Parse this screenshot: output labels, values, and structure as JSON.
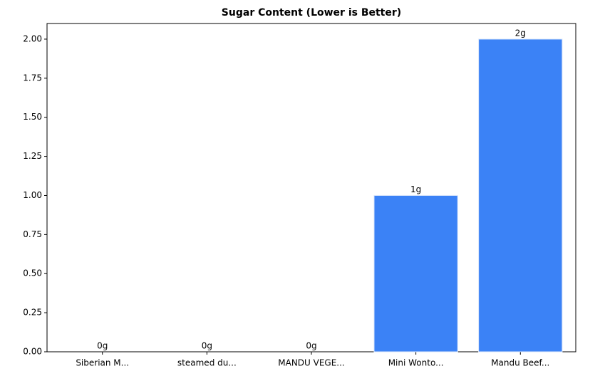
{
  "chart_data": {
    "type": "bar",
    "title": "Sugar Content (Lower is Better)",
    "categories": [
      "Siberian M...",
      "steamed du...",
      "MANDU VEGE...",
      "Mini Wonto...",
      "Mandu Beef..."
    ],
    "values": [
      0,
      0,
      0,
      1,
      2
    ],
    "value_labels": [
      "0g",
      "0g",
      "0g",
      "1g",
      "2g"
    ],
    "color": "#3b82f6",
    "ylim": [
      0,
      2.1
    ],
    "yticks": [
      {
        "value": 0,
        "label": "0.00"
      },
      {
        "value": 0.25,
        "label": "0.25"
      },
      {
        "value": 0.5,
        "label": "0.50"
      },
      {
        "value": 0.75,
        "label": "0.75"
      },
      {
        "value": 1,
        "label": "1.00"
      },
      {
        "value": 1.25,
        "label": "1.25"
      },
      {
        "value": 1.5,
        "label": "1.50"
      },
      {
        "value": 1.75,
        "label": "1.75"
      },
      {
        "value": 2,
        "label": "2.00"
      }
    ],
    "grid": false
  }
}
